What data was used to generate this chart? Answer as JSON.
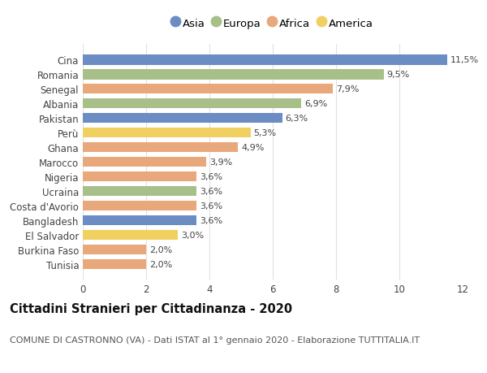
{
  "categories": [
    "Cina",
    "Romania",
    "Senegal",
    "Albania",
    "Pakistan",
    "Perù",
    "Ghana",
    "Marocco",
    "Nigeria",
    "Ucraina",
    "Costa d'Avorio",
    "Bangladesh",
    "El Salvador",
    "Burkina Faso",
    "Tunisia"
  ],
  "values": [
    11.5,
    9.5,
    7.9,
    6.9,
    6.3,
    5.3,
    4.9,
    3.9,
    3.6,
    3.6,
    3.6,
    3.6,
    3.0,
    2.0,
    2.0
  ],
  "labels": [
    "11,5%",
    "9,5%",
    "7,9%",
    "6,9%",
    "6,3%",
    "5,3%",
    "4,9%",
    "3,9%",
    "3,6%",
    "3,6%",
    "3,6%",
    "3,6%",
    "3,0%",
    "2,0%",
    "2,0%"
  ],
  "regions": [
    "Asia",
    "Europa",
    "Africa",
    "Europa",
    "Asia",
    "America",
    "Africa",
    "Africa",
    "Africa",
    "Europa",
    "Africa",
    "Asia",
    "America",
    "Africa",
    "Africa"
  ],
  "region_colors": {
    "Asia": "#6b8dc4",
    "Europa": "#a8bf8a",
    "Africa": "#e8a87c",
    "America": "#f0d060"
  },
  "legend_order": [
    "Asia",
    "Europa",
    "Africa",
    "America"
  ],
  "title": "Cittadini Stranieri per Cittadinanza - 2020",
  "subtitle": "COMUNE DI CASTRONNO (VA) - Dati ISTAT al 1° gennaio 2020 - Elaborazione TUTTITALIA.IT",
  "xlim": [
    0,
    12
  ],
  "xticks": [
    0,
    2,
    4,
    6,
    8,
    10,
    12
  ],
  "background_color": "#ffffff",
  "grid_color": "#e0e0e0",
  "bar_height": 0.68,
  "title_fontsize": 10.5,
  "subtitle_fontsize": 8,
  "label_fontsize": 8,
  "tick_fontsize": 8.5,
  "legend_fontsize": 9.5
}
